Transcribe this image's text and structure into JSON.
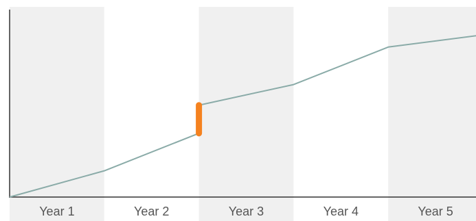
{
  "chart_data": {
    "type": "line",
    "categories": [
      "Year 1",
      "Year 2",
      "Year 3",
      "Year 4",
      "Year 5"
    ],
    "title": "",
    "xlabel": "",
    "ylabel": "",
    "ylim": [
      0,
      100
    ],
    "grid": false,
    "band_colors": [
      "#f0f0f0",
      "#ffffff"
    ],
    "series": [
      {
        "color": "#8aaba8",
        "points": [
          {
            "x": 0,
            "y": 0
          },
          {
            "x": 1,
            "y": 14
          },
          {
            "x": 2,
            "y": 34
          },
          {
            "x": 2,
            "y": 49
          },
          {
            "x": 3,
            "y": 60
          },
          {
            "x": 4,
            "y": 80
          },
          {
            "x": 5,
            "y": 86.5
          }
        ]
      }
    ],
    "highlight": {
      "color": "#f5821f",
      "x": 2,
      "y_from": 34,
      "y_to": 49
    }
  }
}
